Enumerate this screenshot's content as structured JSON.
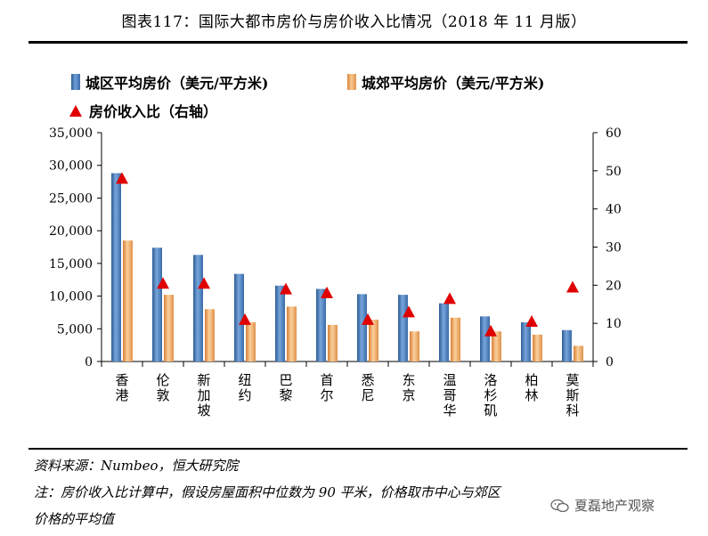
{
  "title": "图表117：国际大都市房价与房价收入比情况（2018 年 11 月版）",
  "legend": {
    "urban": "城区平均房价（美元/平方米)",
    "suburb": "城郊平均房价（美元/平方米)",
    "ratio": "房价收入比（右轴）"
  },
  "colors": {
    "urban": "#4a7fc1",
    "suburb": "#f0a868",
    "ratio": "#e00000"
  },
  "chart_data": {
    "type": "bar",
    "categories": [
      "香港",
      "伦敦",
      "新加坡",
      "纽约",
      "巴黎",
      "首尔",
      "悉尼",
      "东京",
      "温哥华",
      "洛杉矶",
      "柏林",
      "莫斯科"
    ],
    "series": [
      {
        "name": "城区平均房价（美元/平方米)",
        "type": "bar",
        "axis": "left",
        "values": [
          28800,
          17400,
          16300,
          13400,
          11600,
          11100,
          10300,
          10200,
          8900,
          6900,
          6000,
          4800
        ]
      },
      {
        "name": "城郊平均房价（美元/平方米)",
        "type": "bar",
        "axis": "left",
        "values": [
          18500,
          10200,
          8000,
          6000,
          8400,
          5600,
          6400,
          4600,
          6700,
          4600,
          4100,
          2400
        ]
      },
      {
        "name": "房价收入比（右轴）",
        "type": "scatter",
        "axis": "right",
        "values": [
          48,
          20.5,
          20.5,
          11,
          19,
          18,
          11,
          13,
          16.5,
          8,
          10.5,
          19.5
        ]
      }
    ],
    "y_left": {
      "min": 0,
      "max": 35000,
      "ticks": [
        "0",
        "5,000",
        "10,000",
        "15,000",
        "20,000",
        "25,000",
        "30,000",
        "35,000"
      ]
    },
    "y_right": {
      "min": 0,
      "max": 60,
      "ticks": [
        "0",
        "10",
        "20",
        "30",
        "40",
        "50",
        "60"
      ]
    }
  },
  "notes": {
    "source": "资料来源：Numbeo，恒大研究院",
    "line1": "注：房价收入比计算中，假设房屋面积中位数为 90 平米，价格取市中心与郊区",
    "line2": "价格的平均值"
  },
  "watermark": "夏磊地产观察"
}
